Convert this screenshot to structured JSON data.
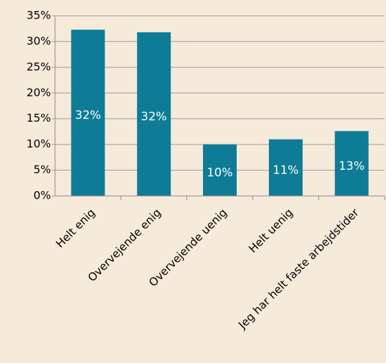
{
  "chart_data": {
    "type": "bar",
    "categories": [
      "Helt enig",
      "Overvejende enig",
      "Overvejende uenig",
      "Helt uenig",
      "Jeg har helt faste arbejdstider"
    ],
    "values": [
      32.3,
      31.8,
      10,
      11,
      12.6
    ],
    "value_labels": [
      "32%",
      "32%",
      "10%",
      "11%",
      "13%"
    ],
    "color": "#0e7c96",
    "ylim": [
      0,
      35
    ],
    "yticks": [
      {
        "value": 0,
        "label": "0%"
      },
      {
        "value": 5,
        "label": "5%"
      },
      {
        "value": 10,
        "label": "10%"
      },
      {
        "value": 15,
        "label": "15%"
      },
      {
        "value": 20,
        "label": "20%"
      },
      {
        "value": 25,
        "label": "25%"
      },
      {
        "value": 30,
        "label": "30%"
      },
      {
        "value": 35,
        "label": "35%"
      }
    ],
    "grid": true
  }
}
